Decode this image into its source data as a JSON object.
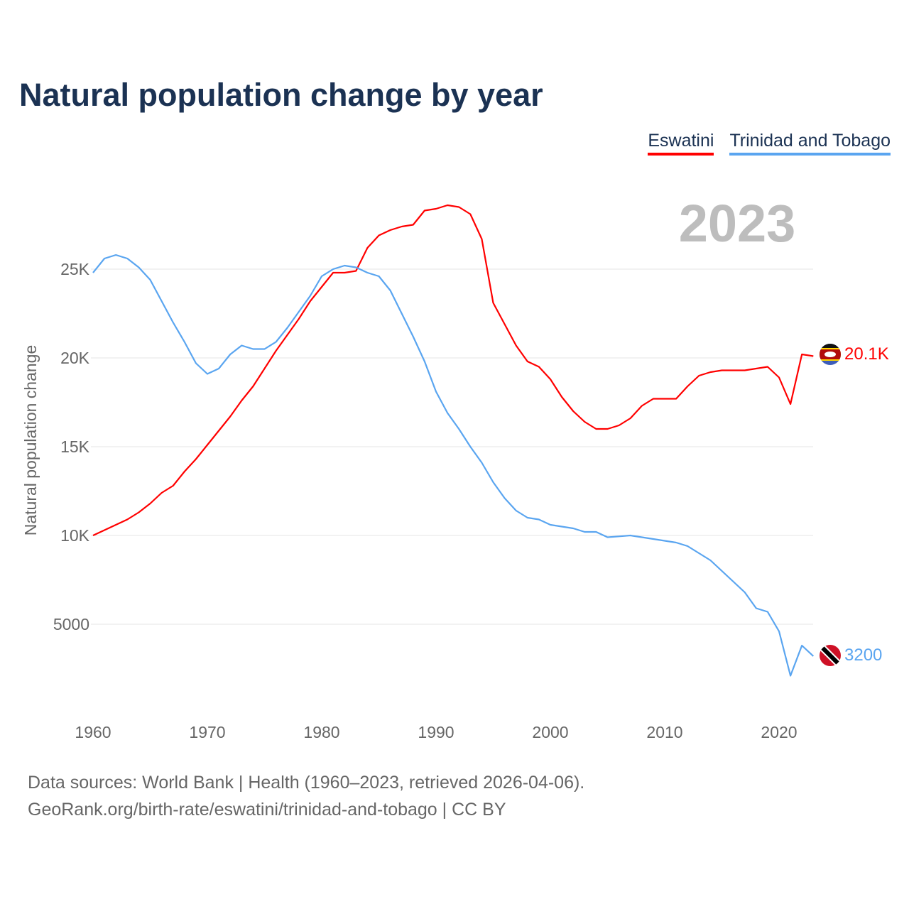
{
  "title": "Natural population change by year",
  "legend": [
    {
      "label": "Eswatini",
      "color": "#ff0000"
    },
    {
      "label": "Trinidad and Tobago",
      "color": "#5aa5f0"
    }
  ],
  "year_display": "2023",
  "end_labels": {
    "eswatini": "20.1K",
    "trinidad": "3200"
  },
  "sources": {
    "line1": "Data sources: World Bank | Health (1960–2023, retrieved 2026-04-06).",
    "line2": "GeoRank.org/birth-rate/eswatini/trinidad-and-tobago | CC BY"
  },
  "chart_data": {
    "type": "line",
    "title": "Natural population change by year",
    "xlabel": "",
    "ylabel": "Natural population change",
    "xlim": [
      1960,
      2023
    ],
    "ylim": [
      0,
      29000
    ],
    "x_ticks": [
      1960,
      1970,
      1980,
      1990,
      2000,
      2010,
      2020
    ],
    "y_ticks": [
      {
        "v": 5000,
        "label": "5000"
      },
      {
        "v": 10000,
        "label": "10K"
      },
      {
        "v": 15000,
        "label": "15K"
      },
      {
        "v": 20000,
        "label": "20K"
      },
      {
        "v": 25000,
        "label": "25K"
      }
    ],
    "legend_position": "top-right",
    "grid": true,
    "x_start": 1960,
    "series": [
      {
        "name": "Eswatini",
        "color": "#ff0000",
        "values": [
          10000,
          10300,
          10600,
          10900,
          11300,
          11800,
          12400,
          12800,
          13600,
          14300,
          15100,
          15900,
          16700,
          17600,
          18400,
          19400,
          20400,
          21300,
          22200,
          23200,
          24000,
          24800,
          24800,
          24900,
          26200,
          26900,
          27200,
          27400,
          27500,
          28300,
          28400,
          28600,
          28500,
          28100,
          26700,
          23100,
          21900,
          20700,
          19800,
          19500,
          18800,
          17800,
          17000,
          16400,
          16000,
          16000,
          16200,
          16600,
          17300,
          17700,
          17700,
          17700,
          18400,
          19000,
          19200,
          19300,
          19300,
          19300,
          19400,
          19500,
          18900,
          17400,
          20200,
          20100
        ]
      },
      {
        "name": "Trinidad and Tobago",
        "color": "#5aa5f0",
        "values": [
          24800,
          25600,
          25800,
          25600,
          25100,
          24400,
          23200,
          22000,
          20900,
          19700,
          19100,
          19400,
          20200,
          20700,
          20500,
          20500,
          20900,
          21700,
          22600,
          23500,
          24600,
          25000,
          25200,
          25100,
          24800,
          24600,
          23800,
          22500,
          21200,
          19800,
          18100,
          16900,
          16000,
          15000,
          14100,
          13000,
          12100,
          11400,
          11000,
          10900,
          10600,
          10500,
          10400,
          10200,
          10200,
          9900,
          9950,
          10000,
          9900,
          9800,
          9700,
          9600,
          9400,
          9000,
          8600,
          8000,
          7400,
          6800,
          5900,
          5700,
          4600,
          2100,
          3800,
          3200
        ]
      }
    ]
  }
}
